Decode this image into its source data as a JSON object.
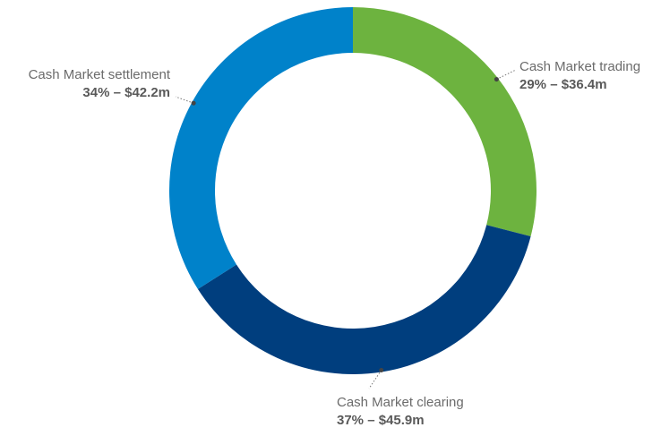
{
  "chart_data": {
    "type": "donut",
    "categories": [
      "Cash Market trading",
      "Cash Market clearing",
      "Cash Market settlement"
    ],
    "values": [
      29,
      37,
      34
    ],
    "value_labels": [
      "29% – $36.4m",
      "37% – $45.9m",
      "34% – $42.2m"
    ],
    "colors": [
      "#6db33f",
      "#003e7e",
      "#0082ca"
    ]
  }
}
